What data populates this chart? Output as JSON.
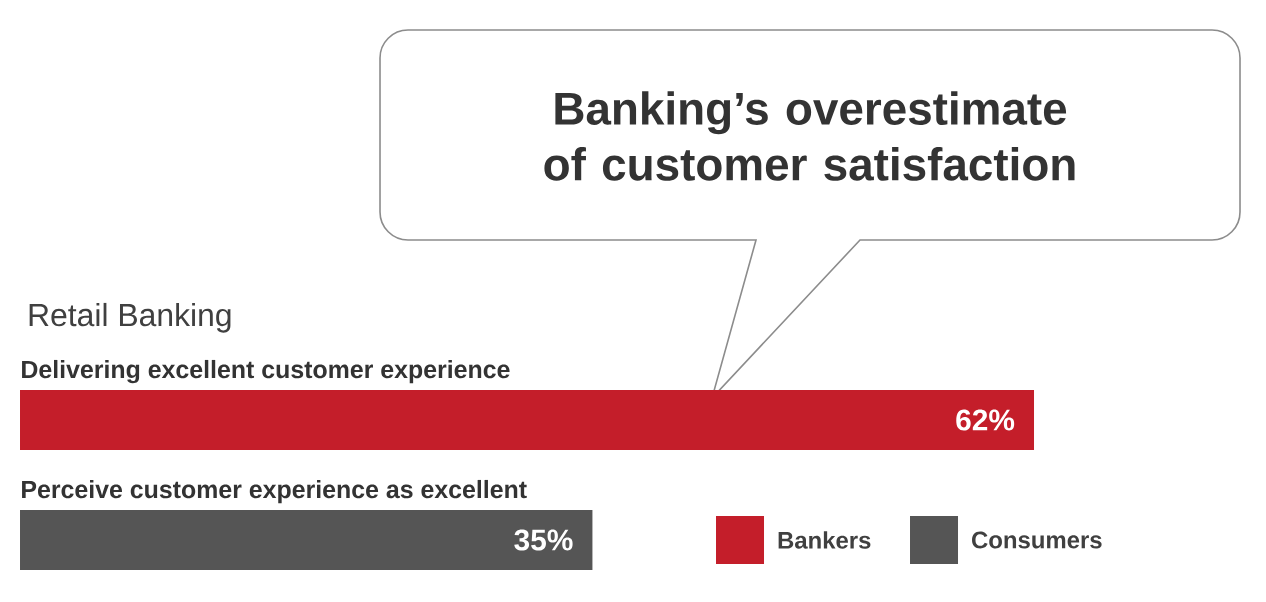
{
  "chart_data": {
    "type": "bar",
    "orientation": "horizontal",
    "title": "Banking’s overestimate of customer satisfaction",
    "subtitle": "Retail Banking",
    "categories": [
      "Delivering excellent customer experience",
      "Perceive customer experience as excellent"
    ],
    "series": [
      {
        "name": "Bankers",
        "color": "#c41e2a",
        "values": [
          62,
          null
        ],
        "value_labels": [
          "62%",
          null
        ]
      },
      {
        "name": "Consumers",
        "color": "#555555",
        "values": [
          null,
          35
        ],
        "value_labels": [
          null,
          "35%"
        ]
      }
    ],
    "legend": "bottom right"
  }
}
